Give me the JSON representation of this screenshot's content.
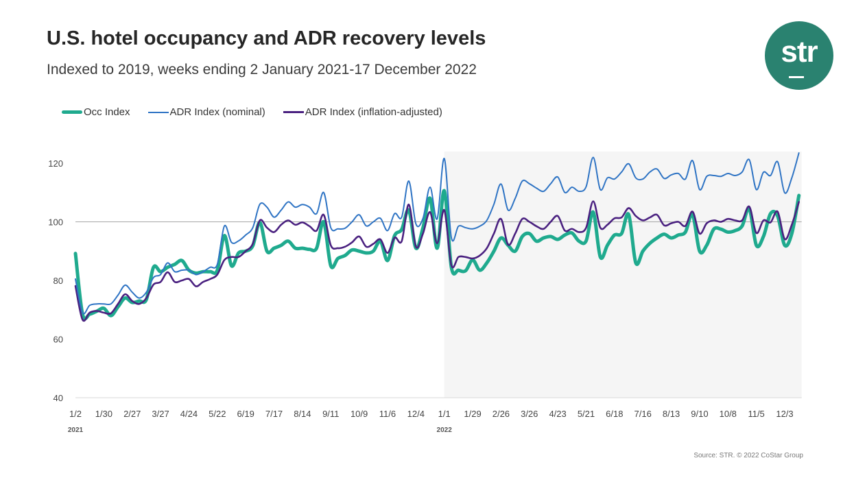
{
  "header": {
    "title": "U.S. hotel occupancy and ADR recovery levels",
    "subtitle": "Indexed to 2019, weeks ending 2 January 2021-17 December 2022",
    "logo_text": "str"
  },
  "footer": {
    "source": "Source: STR. © 2022 CoStar Group"
  },
  "colors": {
    "occ": "#1faa8e",
    "adr_nominal": "#2f74c4",
    "adr_real": "#4a2180",
    "logo": "#2a8270",
    "shade": "#f5f5f5"
  },
  "chart_data": {
    "type": "line",
    "title": "U.S. hotel occupancy and ADR recovery levels",
    "subtitle": "Indexed to 2019, weeks ending 2 January 2021-17 December 2022",
    "legend_position": "top-left",
    "grid": "reference line at 100 only",
    "shaded_region": "2022",
    "ylim": [
      40,
      124
    ],
    "yticks": [
      40,
      60,
      80,
      100,
      120
    ],
    "xtick_labels": [
      "1/2",
      "1/30",
      "2/27",
      "3/27",
      "4/24",
      "5/22",
      "6/19",
      "7/17",
      "8/14",
      "9/11",
      "10/9",
      "11/6",
      "12/4",
      "1/1",
      "1/29",
      "2/26",
      "3/26",
      "4/23",
      "5/21",
      "6/18",
      "7/16",
      "8/13",
      "9/10",
      "10/8",
      "11/5",
      "12/3"
    ],
    "year_labels": [
      "2021",
      "2022"
    ],
    "series": [
      {
        "name": "Occ Index",
        "values": [
          89.2,
          68.5,
          68.5,
          69.5,
          70.5,
          68,
          71,
          74,
          72.5,
          73,
          73.5,
          84.5,
          83,
          84.5,
          85.5,
          86.8,
          83.5,
          82.5,
          83,
          83,
          83.5,
          95.3,
          85,
          89.4,
          90,
          91.8,
          99.8,
          90,
          91,
          92,
          93.4,
          91,
          91,
          90.6,
          91,
          100,
          85,
          87.5,
          88.5,
          90.4,
          90,
          89.4,
          90,
          93.4,
          86.8,
          95.3,
          97.4,
          104,
          91,
          98,
          108,
          91,
          110.6,
          84.5,
          83.5,
          83.3,
          87,
          83.5,
          86,
          90,
          94.5,
          92,
          90,
          95,
          96,
          93.4,
          94.5,
          95,
          94,
          95.5,
          96.2,
          93.4,
          93.5,
          103.3,
          88,
          92,
          95.5,
          96,
          102.5,
          86,
          90,
          92.7,
          94.5,
          95.8,
          94.5,
          95.5,
          96.5,
          102.5,
          90,
          92,
          97.5,
          97.5,
          96.5,
          97,
          98.6,
          104.5,
          92,
          95,
          102.8,
          102,
          92,
          96,
          109
        ]
      },
      {
        "name": "ADR Index (nominal)",
        "values": [
          80.5,
          69,
          71.5,
          72,
          72,
          72,
          75,
          78.4,
          76,
          74,
          76,
          81,
          82,
          86,
          83,
          83.5,
          83.5,
          82,
          83,
          84.5,
          85.5,
          98.6,
          93,
          93.5,
          95.5,
          98,
          106,
          105,
          101.6,
          104,
          106.8,
          105,
          105.9,
          105,
          102.8,
          110,
          98,
          97.6,
          97.8,
          100,
          102.4,
          98.6,
          100,
          101.2,
          97,
          102.8,
          101.6,
          113.9,
          99.3,
          101.2,
          111.8,
          101,
          121.6,
          94.6,
          98.5,
          98,
          97.6,
          98.5,
          100.5,
          106,
          112.9,
          104,
          108,
          113.9,
          113,
          111.5,
          110.4,
          113,
          115.3,
          110,
          111.8,
          110.4,
          112,
          122,
          111,
          115,
          114.6,
          117,
          119.8,
          115,
          114.6,
          117,
          118,
          114.8,
          116,
          116.5,
          114.6,
          120.9,
          111,
          115.5,
          115.8,
          115.5,
          116.5,
          115.8,
          117,
          121.2,
          111,
          116.9,
          115.8,
          120.5,
          109.9,
          115,
          123.5
        ]
      },
      {
        "name": "ADR Index (inflation-adjusted)",
        "values": [
          78.1,
          66.6,
          69,
          69.6,
          69,
          68.8,
          72,
          75.3,
          73,
          72,
          74,
          78.6,
          79.5,
          82.8,
          79.5,
          80,
          80.5,
          78,
          79.5,
          80.5,
          82,
          87,
          88,
          88,
          90,
          92.5,
          100.5,
          98,
          96.5,
          99,
          100.5,
          99,
          99.8,
          98.5,
          97,
          102.4,
          92,
          91,
          91.5,
          93,
          95,
          91.5,
          92.5,
          94,
          89.4,
          94.6,
          93.4,
          105.9,
          91.5,
          96,
          103.3,
          92.7,
          104,
          85.2,
          88,
          88,
          87.5,
          88.5,
          91,
          96,
          101,
          92.2,
          96,
          101,
          100,
          98.5,
          97.6,
          100,
          102,
          97,
          97.6,
          96.5,
          98,
          107,
          98,
          99,
          101.2,
          101.5,
          104.7,
          102,
          100.5,
          101.5,
          102.4,
          98.8,
          99.5,
          100,
          98.6,
          103.5,
          96,
          99.5,
          100.5,
          100,
          101,
          100.5,
          100.5,
          105.2,
          96.2,
          100.5,
          99.8,
          103.5,
          94.1,
          99,
          106.8
        ]
      }
    ]
  }
}
